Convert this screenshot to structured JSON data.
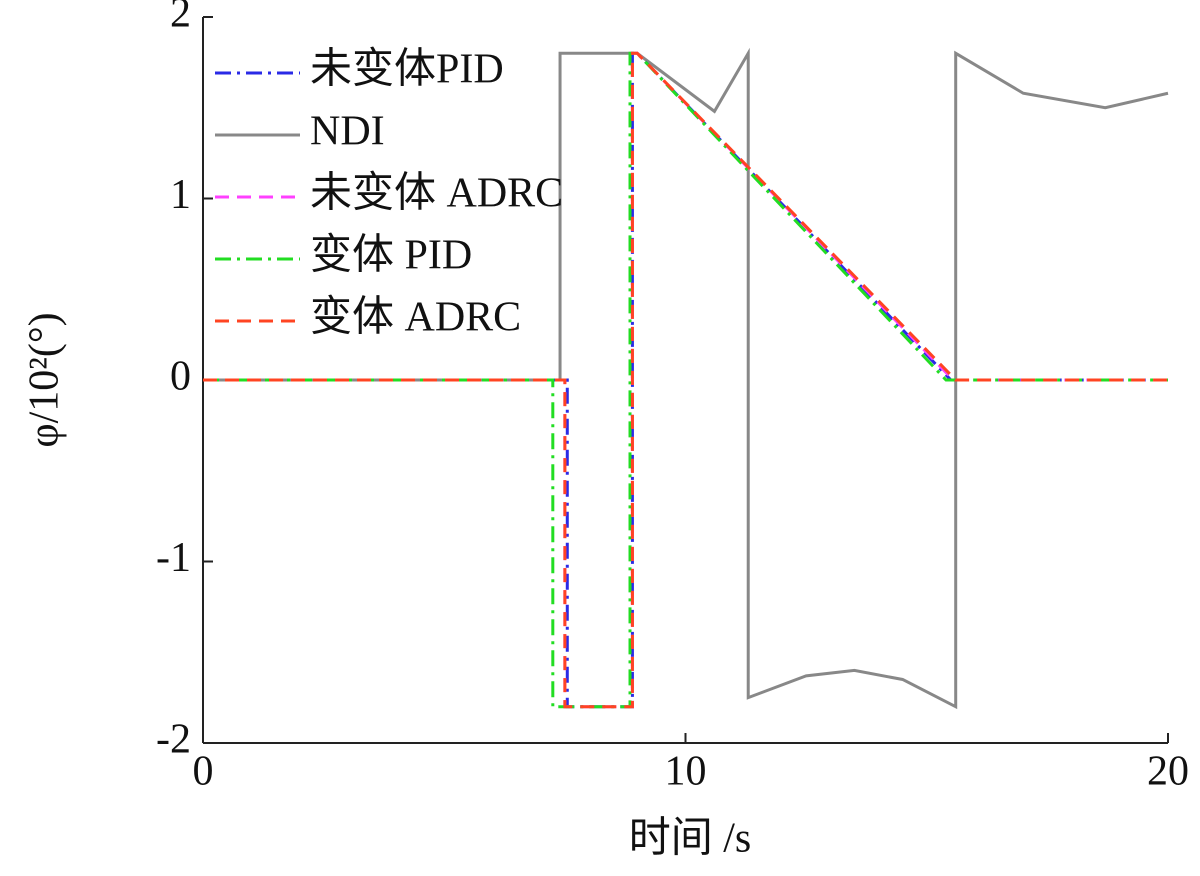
{
  "chart_data": {
    "type": "line",
    "x_label": "时间 /s",
    "y_label": "φ/10²(°)",
    "xlim": [
      0,
      20
    ],
    "xticks": [
      0,
      10,
      20
    ],
    "ylim": [
      -2,
      2
    ],
    "yticks": [
      -2,
      -1,
      0,
      1,
      2
    ],
    "legend": "upper left",
    "series": [
      {
        "name": "未变体PID",
        "color": "#2a2ae6",
        "style": "dashdot",
        "x": [
          0,
          7.55,
          7.55,
          8.9,
          8.9,
          9.0,
          15.5,
          20
        ],
        "values": [
          0,
          0,
          -1.8,
          -1.8,
          1.8,
          1.8,
          0,
          0
        ]
      },
      {
        "name": "NDI",
        "color": "#888888",
        "style": "solid",
        "x": [
          0,
          7.4,
          7.4,
          9.0,
          10.6,
          11.3,
          11.3,
          12.5,
          13.5,
          14.5,
          15.6,
          15.6,
          17,
          18.7,
          20
        ],
        "values": [
          0,
          0,
          1.8,
          1.8,
          1.48,
          1.8,
          -1.75,
          -1.63,
          -1.6,
          -1.65,
          -1.8,
          1.8,
          1.58,
          1.5,
          1.58
        ]
      },
      {
        "name": "未变体 ADRC",
        "color": "#ff40ff",
        "style": "dash",
        "x": [
          0,
          7.5,
          7.5,
          8.9,
          8.9,
          9.0,
          15.55,
          20
        ],
        "values": [
          0,
          0,
          -1.8,
          -1.8,
          1.8,
          1.8,
          0,
          0
        ]
      },
      {
        "name": "变体 PID",
        "color": "#22dd22",
        "style": "dashdot",
        "x": [
          0,
          7.25,
          7.25,
          8.85,
          8.85,
          9.0,
          15.4,
          20
        ],
        "values": [
          0,
          0,
          -1.8,
          -1.8,
          1.8,
          1.8,
          0,
          0
        ]
      },
      {
        "name": "变体 ADRC",
        "color": "#ff4422",
        "style": "dash",
        "x": [
          0,
          7.5,
          7.5,
          8.9,
          8.9,
          9.0,
          15.6,
          20
        ],
        "values": [
          0,
          0,
          -1.8,
          -1.8,
          1.8,
          1.8,
          0,
          0
        ]
      }
    ]
  }
}
